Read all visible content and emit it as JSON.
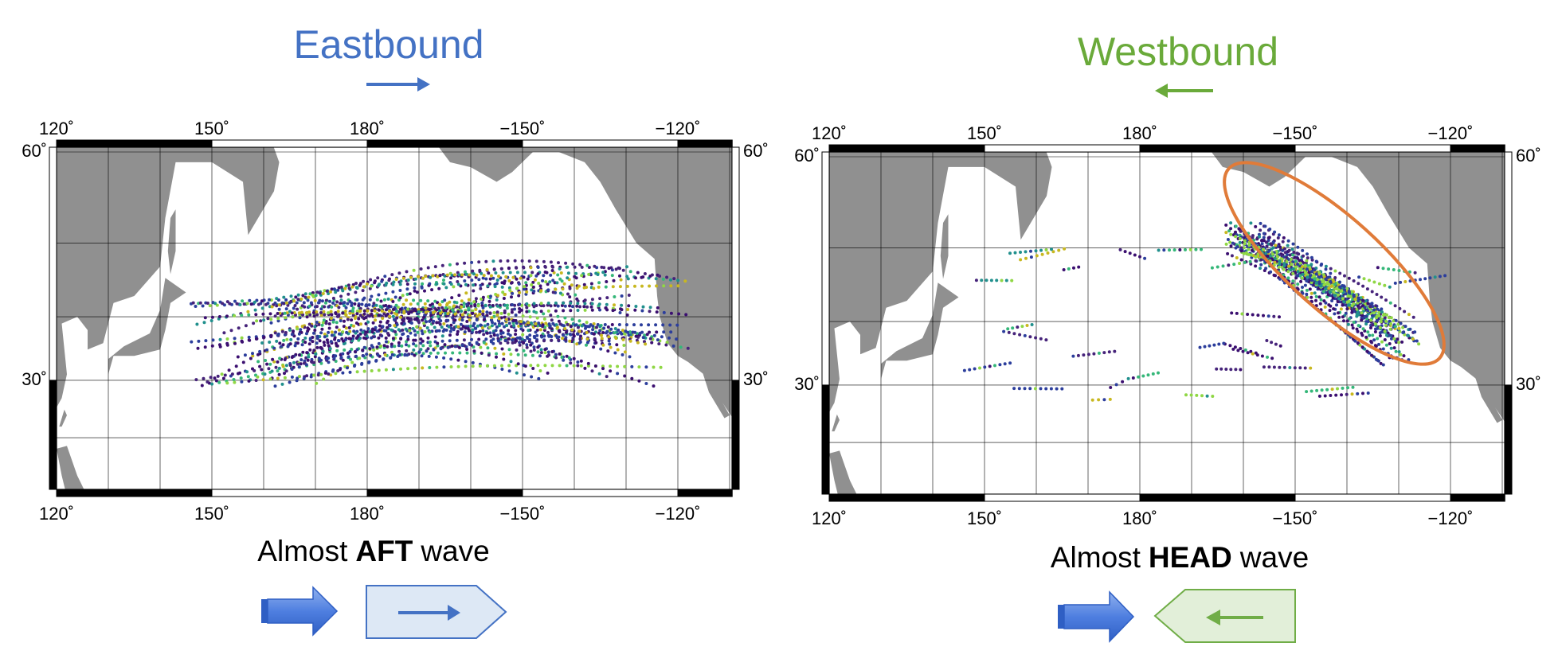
{
  "panels": [
    {
      "title": "Eastbound",
      "lon_labels": [
        "120˚",
        "150˚",
        "180˚",
        "−150˚",
        "−120˚"
      ],
      "lat_labels": [
        "60˚",
        "30˚"
      ],
      "caption": {
        "prefix": "Almost",
        "emphasis": "AFT",
        "suffix": "wave"
      }
    },
    {
      "title": "Westbound",
      "lon_labels": [
        "120˚",
        "150˚",
        "180˚",
        "−150˚",
        "−120˚"
      ],
      "lat_labels": [
        "60˚",
        "30˚"
      ],
      "caption": {
        "prefix": "Almost",
        "emphasis": "HEAD",
        "suffix": "wave"
      }
    }
  ]
}
